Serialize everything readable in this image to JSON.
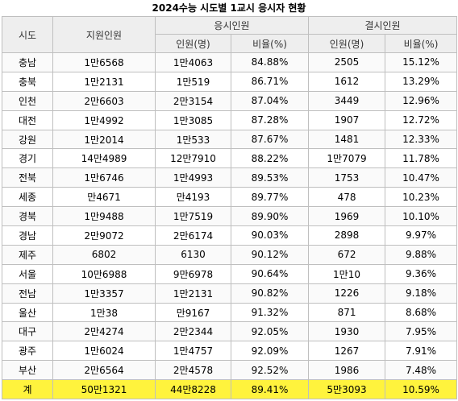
{
  "title": "2024수능 시도별 1교시 응시자 현황",
  "header": {
    "region": "시도",
    "applicants": "지원인원",
    "taken_group": "응시인원",
    "absent_group": "결시인원",
    "taken_count": "인원(명)",
    "taken_ratio": "비율(%)",
    "absent_count": "인원(명)",
    "absent_ratio": "비율(%)"
  },
  "rows": [
    [
      "충남",
      "1만6568",
      "1만4063",
      "84.88%",
      "2505",
      "15.12%"
    ],
    [
      "충북",
      "1만2131",
      "1만519",
      "86.71%",
      "1612",
      "13.29%"
    ],
    [
      "인천",
      "2만6603",
      "2만3154",
      "87.04%",
      "3449",
      "12.96%"
    ],
    [
      "대전",
      "1만4992",
      "1만3085",
      "87.28%",
      "1907",
      "12.72%"
    ],
    [
      "강원",
      "1만2014",
      "1만533",
      "87.67%",
      "1481",
      "12.33%"
    ],
    [
      "경기",
      "14만4989",
      "12만7910",
      "88.22%",
      "1만7079",
      "11.78%"
    ],
    [
      "전북",
      "1만6746",
      "1만4993",
      "89.53%",
      "1753",
      "10.47%"
    ],
    [
      "세종",
      "만4671",
      "만4193",
      "89.77%",
      "478",
      "10.23%"
    ],
    [
      "경북",
      "1만9488",
      "1만7519",
      "89.90%",
      "1969",
      "10.10%"
    ],
    [
      "경남",
      "2만9072",
      "2만6174",
      "90.03%",
      "2898",
      "9.97%"
    ],
    [
      "제주",
      "6802",
      "6130",
      "90.12%",
      "672",
      "9.88%"
    ],
    [
      "서울",
      "10만6988",
      "9만6978",
      "90.64%",
      "1만10",
      "9.36%"
    ],
    [
      "전남",
      "1만3357",
      "1만2131",
      "90.82%",
      "1226",
      "9.18%"
    ],
    [
      "울산",
      "1만38",
      "만9167",
      "91.32%",
      "871",
      "8.68%"
    ],
    [
      "대구",
      "2만4274",
      "2만2344",
      "92.05%",
      "1930",
      "7.95%"
    ],
    [
      "광주",
      "1만6024",
      "1만4757",
      "92.09%",
      "1267",
      "7.91%"
    ],
    [
      "부산",
      "2만6564",
      "2만4578",
      "92.52%",
      "1986",
      "7.48%"
    ]
  ],
  "total": [
    "계",
    "50만1321",
    "44만8228",
    "89.41%",
    "5만3093",
    "10.59%"
  ],
  "colors": {
    "header_bg": "#eeeeee",
    "total_bg": "#fff33d",
    "border": "#bfbfbf"
  }
}
